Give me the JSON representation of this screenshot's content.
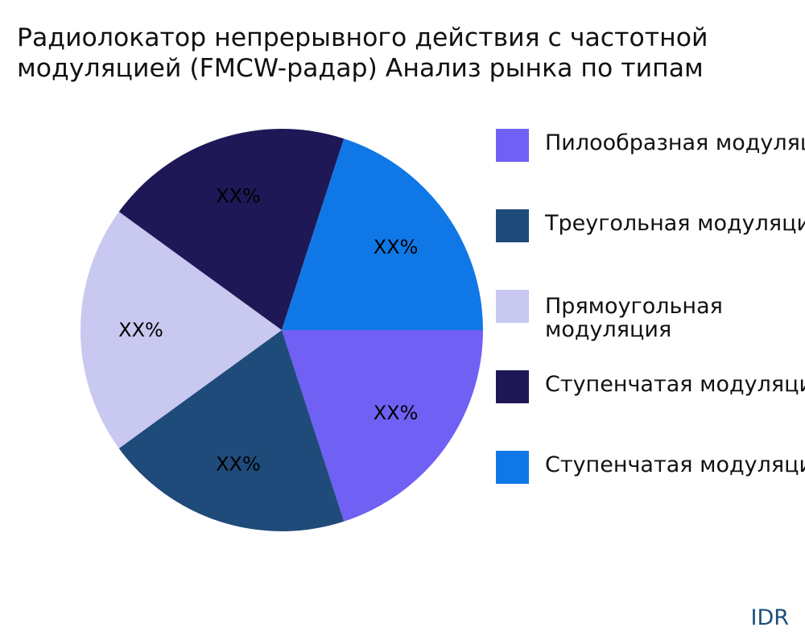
{
  "title_lines": [
    "Радиолокатор непрерывного действия с частотной",
    "модуляцией (FMCW-радар) Анализ рынка по типам"
  ],
  "brand": "IDR",
  "chart_data": {
    "type": "pie",
    "title": "Радиолокатор непрерывного действия с частотной модуляцией (FMCW-радар) Анализ рынка по типам",
    "legend_position": "right",
    "categories": [
      "Пилообразная модуляция",
      "Треугольная модуляция",
      "Прямоугольная модуляция",
      "Ступенчатая модуляция",
      "Ступенчатая модуляция"
    ],
    "values": [
      20,
      20,
      20,
      20,
      20
    ],
    "data_labels": [
      "XX%",
      "XX%",
      "XX%",
      "XX%",
      "XX%"
    ],
    "colors": [
      "#7060f3",
      "#1f4b7a",
      "#c8c8f0",
      "#1e1857",
      "#0f78e6"
    ]
  }
}
